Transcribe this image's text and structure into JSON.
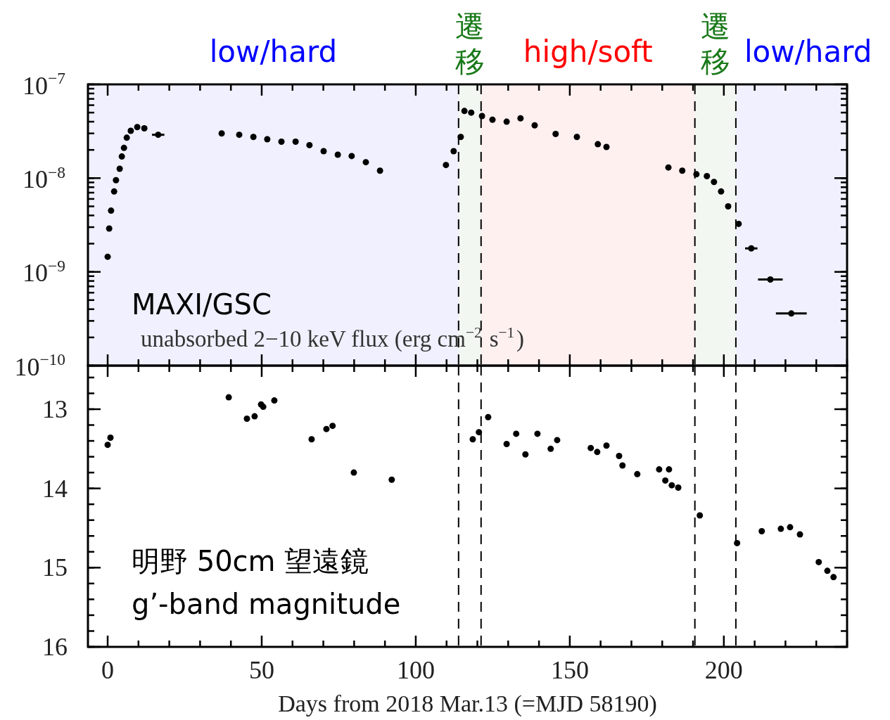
{
  "chart_data": [
    {
      "type": "scatter",
      "log": "y",
      "marker": "circle",
      "tick_labels": "y",
      "ylabel": "unabsorbed 2−10 keV flux (erg cm$^{−2}$ s$^{−1}$)",
      "annotations": [
        "MAXI/GSC"
      ],
      "xlim": [
        -6.4,
        240
      ],
      "xticks": [
        0,
        50,
        100,
        150,
        200
      ],
      "ylim": [
        1e-10,
        1e-07
      ],
      "yticks": [
        {
          "value": 1e-10,
          "label": "10$^{−10}$"
        },
        {
          "value": 1e-09,
          "label": "10$^{−9}$"
        },
        {
          "value": 1e-08,
          "label": "10$^{−8}$"
        },
        {
          "value": 1e-07,
          "label": "10$^{−7}$"
        }
      ],
      "bands": [
        {
          "axis": "x",
          "from": -6.4,
          "to": 113.9,
          "label": "low/hard",
          "color": "#0000ff"
        },
        {
          "axis": "x",
          "from": 113.9,
          "to": 121.2,
          "label": "遷移",
          "color": "#1a7a1a"
        },
        {
          "axis": "x",
          "from": 121.2,
          "to": 190.6,
          "label": "high/soft",
          "color": "#ff0000"
        },
        {
          "axis": "x",
          "from": 190.6,
          "to": 203.9,
          "label": "遷移",
          "color": "#1a7a1a"
        },
        {
          "axis": "x",
          "from": 203.9,
          "to": 240,
          "label": "low/hard",
          "color": "#0000ff"
        }
      ],
      "ref_lines": [
        {
          "axis": "x",
          "value": 113.9,
          "line_style": "dashed"
        },
        {
          "axis": "x",
          "value": 121.2,
          "line_style": "dashed"
        },
        {
          "axis": "x",
          "value": 190.6,
          "line_style": "dashed"
        },
        {
          "axis": "x",
          "value": 203.9,
          "line_style": "dashed"
        }
      ],
      "series": [
        {
          "color": "#000000",
          "x": [
            0,
            0.5,
            1.1,
            2.1,
            2.7,
            3.9,
            4.6,
            5.3,
            6.2,
            7.5,
            9.6,
            11.9,
            16.4,
            37,
            42.7,
            47.3,
            51.8,
            56.4,
            61,
            65.5,
            70.1,
            74.7,
            79.2,
            83.8,
            88.4,
            109.8,
            112.3,
            114.6,
            115.8,
            118,
            121.5,
            124.9,
            129.5,
            134,
            138.6,
            145.4,
            152.3,
            159.1,
            161.9,
            182,
            186.5,
            191.1,
            194.5,
            196.8,
            199.1,
            201.4,
            204.8,
            208.9,
            215.1,
            221.9
          ],
          "values": [
            1.45e-09,
            2.9e-09,
            4.5e-09,
            7.2e-09,
            9.5e-09,
            1.26e-08,
            1.7e-08,
            2.1e-08,
            2.7e-08,
            3.2e-08,
            3.5e-08,
            3.4e-08,
            2.9e-08,
            3e-08,
            2.9e-08,
            2.75e-08,
            2.6e-08,
            2.45e-08,
            2.45e-08,
            2.25e-08,
            1.94e-08,
            1.78e-08,
            1.72e-08,
            1.48e-08,
            1.2e-08,
            1.38e-08,
            1.94e-08,
            2.75e-08,
            5.2e-08,
            5e-08,
            4.6e-08,
            4.2e-08,
            4e-08,
            4.35e-08,
            3.66e-08,
            2.96e-08,
            2.75e-08,
            2.3e-08,
            2.15e-08,
            1.3e-08,
            1.2e-08,
            1.1e-08,
            1.05e-08,
            9.1e-09,
            7.2e-09,
            5e-09,
            3.25e-09,
            1.78e-09,
            8.3e-10,
            3.6e-10
          ],
          "xerrors": [
            null,
            null,
            null,
            null,
            null,
            null,
            null,
            null,
            null,
            null,
            null,
            null,
            2,
            null,
            null,
            null,
            null,
            null,
            null,
            null,
            null,
            null,
            null,
            null,
            null,
            null,
            null,
            null,
            null,
            null,
            null,
            null,
            null,
            null,
            null,
            null,
            null,
            null,
            null,
            null,
            null,
            null,
            null,
            null,
            null,
            null,
            null,
            2,
            4,
            5
          ]
        }
      ]
    },
    {
      "type": "scatter",
      "marker": "circle",
      "ylabel": "g’-band magnitude",
      "xlabel": "Days from 2018 Mar.13 (=MJD 58190)",
      "annotations": [
        "明野 50cm 望遠鏡"
      ],
      "xlim": [
        -6.4,
        240
      ],
      "xticks": [
        0,
        50,
        100,
        150,
        200
      ],
      "ylim": [
        16,
        12.45
      ],
      "yticks": [
        13,
        14,
        15,
        16
      ],
      "ref_lines": [
        {
          "axis": "x",
          "value": 113.9,
          "line_style": "dashed"
        },
        {
          "axis": "x",
          "value": 121.2,
          "line_style": "dashed"
        },
        {
          "axis": "x",
          "value": 190.6,
          "line_style": "dashed"
        },
        {
          "axis": "x",
          "value": 203.9,
          "line_style": "dashed"
        }
      ],
      "series": [
        {
          "color": "#000000",
          "x": [
            0,
            0.9,
            39.3,
            45.2,
            47.7,
            49.8,
            50.5,
            54.1,
            66.2,
            71,
            73,
            79.9,
            92.2,
            118.5,
            120.5,
            123.5,
            129.5,
            132.6,
            135.6,
            139.5,
            143.8,
            145.9,
            156.8,
            158.9,
            161.9,
            166,
            167.1,
            171.9,
            179,
            182.2,
            181,
            183.1,
            185.2,
            192.2,
            204.3,
            212.3,
            218.5,
            221.5,
            224.7,
            230.8,
            233.6,
            235.6
          ],
          "values": [
            13.45,
            13.36,
            12.85,
            13.12,
            13.09,
            12.94,
            12.97,
            12.89,
            13.38,
            13.25,
            13.21,
            13.8,
            13.89,
            13.38,
            13.29,
            13.1,
            13.44,
            13.31,
            13.57,
            13.31,
            13.5,
            13.39,
            13.49,
            13.54,
            13.46,
            13.59,
            13.71,
            13.82,
            13.76,
            13.76,
            13.9,
            13.96,
            13.99,
            14.34,
            14.69,
            14.54,
            14.51,
            14.49,
            14.58,
            14.93,
            15.04,
            15.12
          ]
        }
      ]
    }
  ]
}
